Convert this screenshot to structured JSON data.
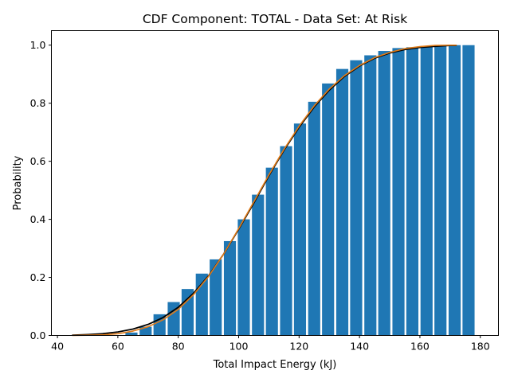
{
  "chart_data": {
    "type": "bar",
    "title": "CDF Component: TOTAL - Data Set: At Risk",
    "xlabel": "Total Impact Energy (kJ)",
    "ylabel": "Probability",
    "xlim": [
      38,
      186
    ],
    "ylim": [
      0,
      1.05
    ],
    "xticks": [
      40,
      60,
      80,
      100,
      120,
      140,
      160,
      180
    ],
    "yticks": [
      0.0,
      0.2,
      0.4,
      0.6,
      0.8,
      1.0
    ],
    "xtick_labels": [
      "40",
      "60",
      "80",
      "100",
      "120",
      "140",
      "160",
      "180"
    ],
    "ytick_labels": [
      "0.0",
      "0.2",
      "0.4",
      "0.6",
      "0.8",
      "1.0"
    ],
    "grid": false,
    "bar_width": 4.0,
    "bars": {
      "x": [
        64.5,
        69.2,
        73.8,
        78.5,
        83.1,
        87.8,
        92.4,
        97.1,
        101.7,
        106.4,
        111.0,
        115.7,
        120.3,
        125.0,
        129.6,
        134.3,
        138.9,
        143.6,
        148.2,
        152.9,
        157.5,
        162.2,
        166.8,
        171.5,
        176.1
      ],
      "values": [
        0.01,
        0.03,
        0.073,
        0.115,
        0.16,
        0.213,
        0.262,
        0.325,
        0.4,
        0.485,
        0.578,
        0.652,
        0.73,
        0.805,
        0.868,
        0.918,
        0.948,
        0.965,
        0.98,
        0.99,
        0.993,
        0.997,
        0.998,
        1.0,
        1.0
      ],
      "color": "#1f77b4"
    },
    "series": [
      {
        "type": "line",
        "color": "#000000",
        "x": [
          45,
          50,
          55,
          60,
          65,
          70,
          75,
          80,
          85,
          90,
          95,
          100,
          105,
          110,
          115,
          120,
          125,
          130,
          135,
          140,
          145,
          150,
          155,
          160,
          165,
          170,
          172
        ],
        "values": [
          0.001,
          0.003,
          0.006,
          0.012,
          0.022,
          0.038,
          0.062,
          0.097,
          0.145,
          0.205,
          0.28,
          0.366,
          0.456,
          0.55,
          0.638,
          0.717,
          0.787,
          0.845,
          0.892,
          0.928,
          0.955,
          0.973,
          0.985,
          0.992,
          0.996,
          0.999,
          0.999
        ]
      },
      {
        "type": "line",
        "color": "#e07b18",
        "x": [
          45,
          50,
          55,
          60,
          65,
          70,
          75,
          80,
          85,
          90,
          95,
          100,
          105,
          110,
          115,
          120,
          125,
          130,
          135,
          140,
          145,
          150,
          155,
          160,
          165,
          170,
          172
        ],
        "values": [
          0.0,
          0.001,
          0.002,
          0.006,
          0.015,
          0.03,
          0.054,
          0.09,
          0.14,
          0.203,
          0.28,
          0.368,
          0.46,
          0.553,
          0.641,
          0.721,
          0.791,
          0.849,
          0.895,
          0.93,
          0.957,
          0.975,
          0.988,
          0.995,
          0.999,
          1.0,
          1.0
        ]
      }
    ]
  }
}
